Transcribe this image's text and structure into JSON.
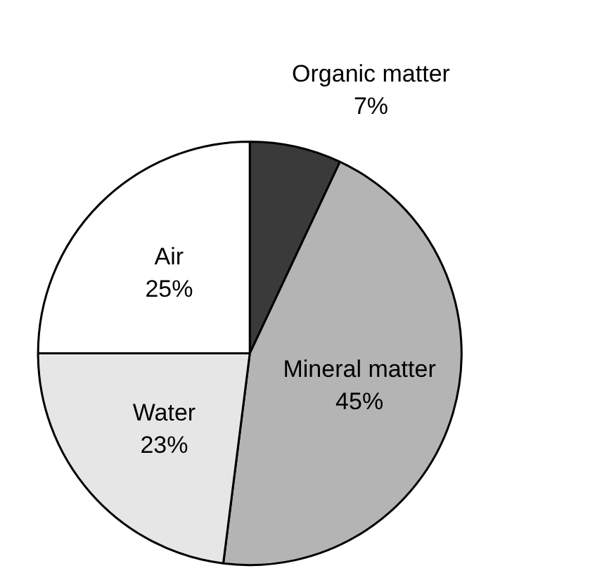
{
  "chart_data": {
    "type": "pie",
    "categories": [
      "Organic matter",
      "Mineral matter",
      "Water",
      "Air"
    ],
    "values": [
      7,
      45,
      23,
      25
    ],
    "colors": [
      "#3a3a3a",
      "#b4b4b4",
      "#e6e6e6",
      "#ffffff"
    ],
    "value_labels": [
      "7%",
      "45%",
      "23%",
      "25%"
    ]
  }
}
